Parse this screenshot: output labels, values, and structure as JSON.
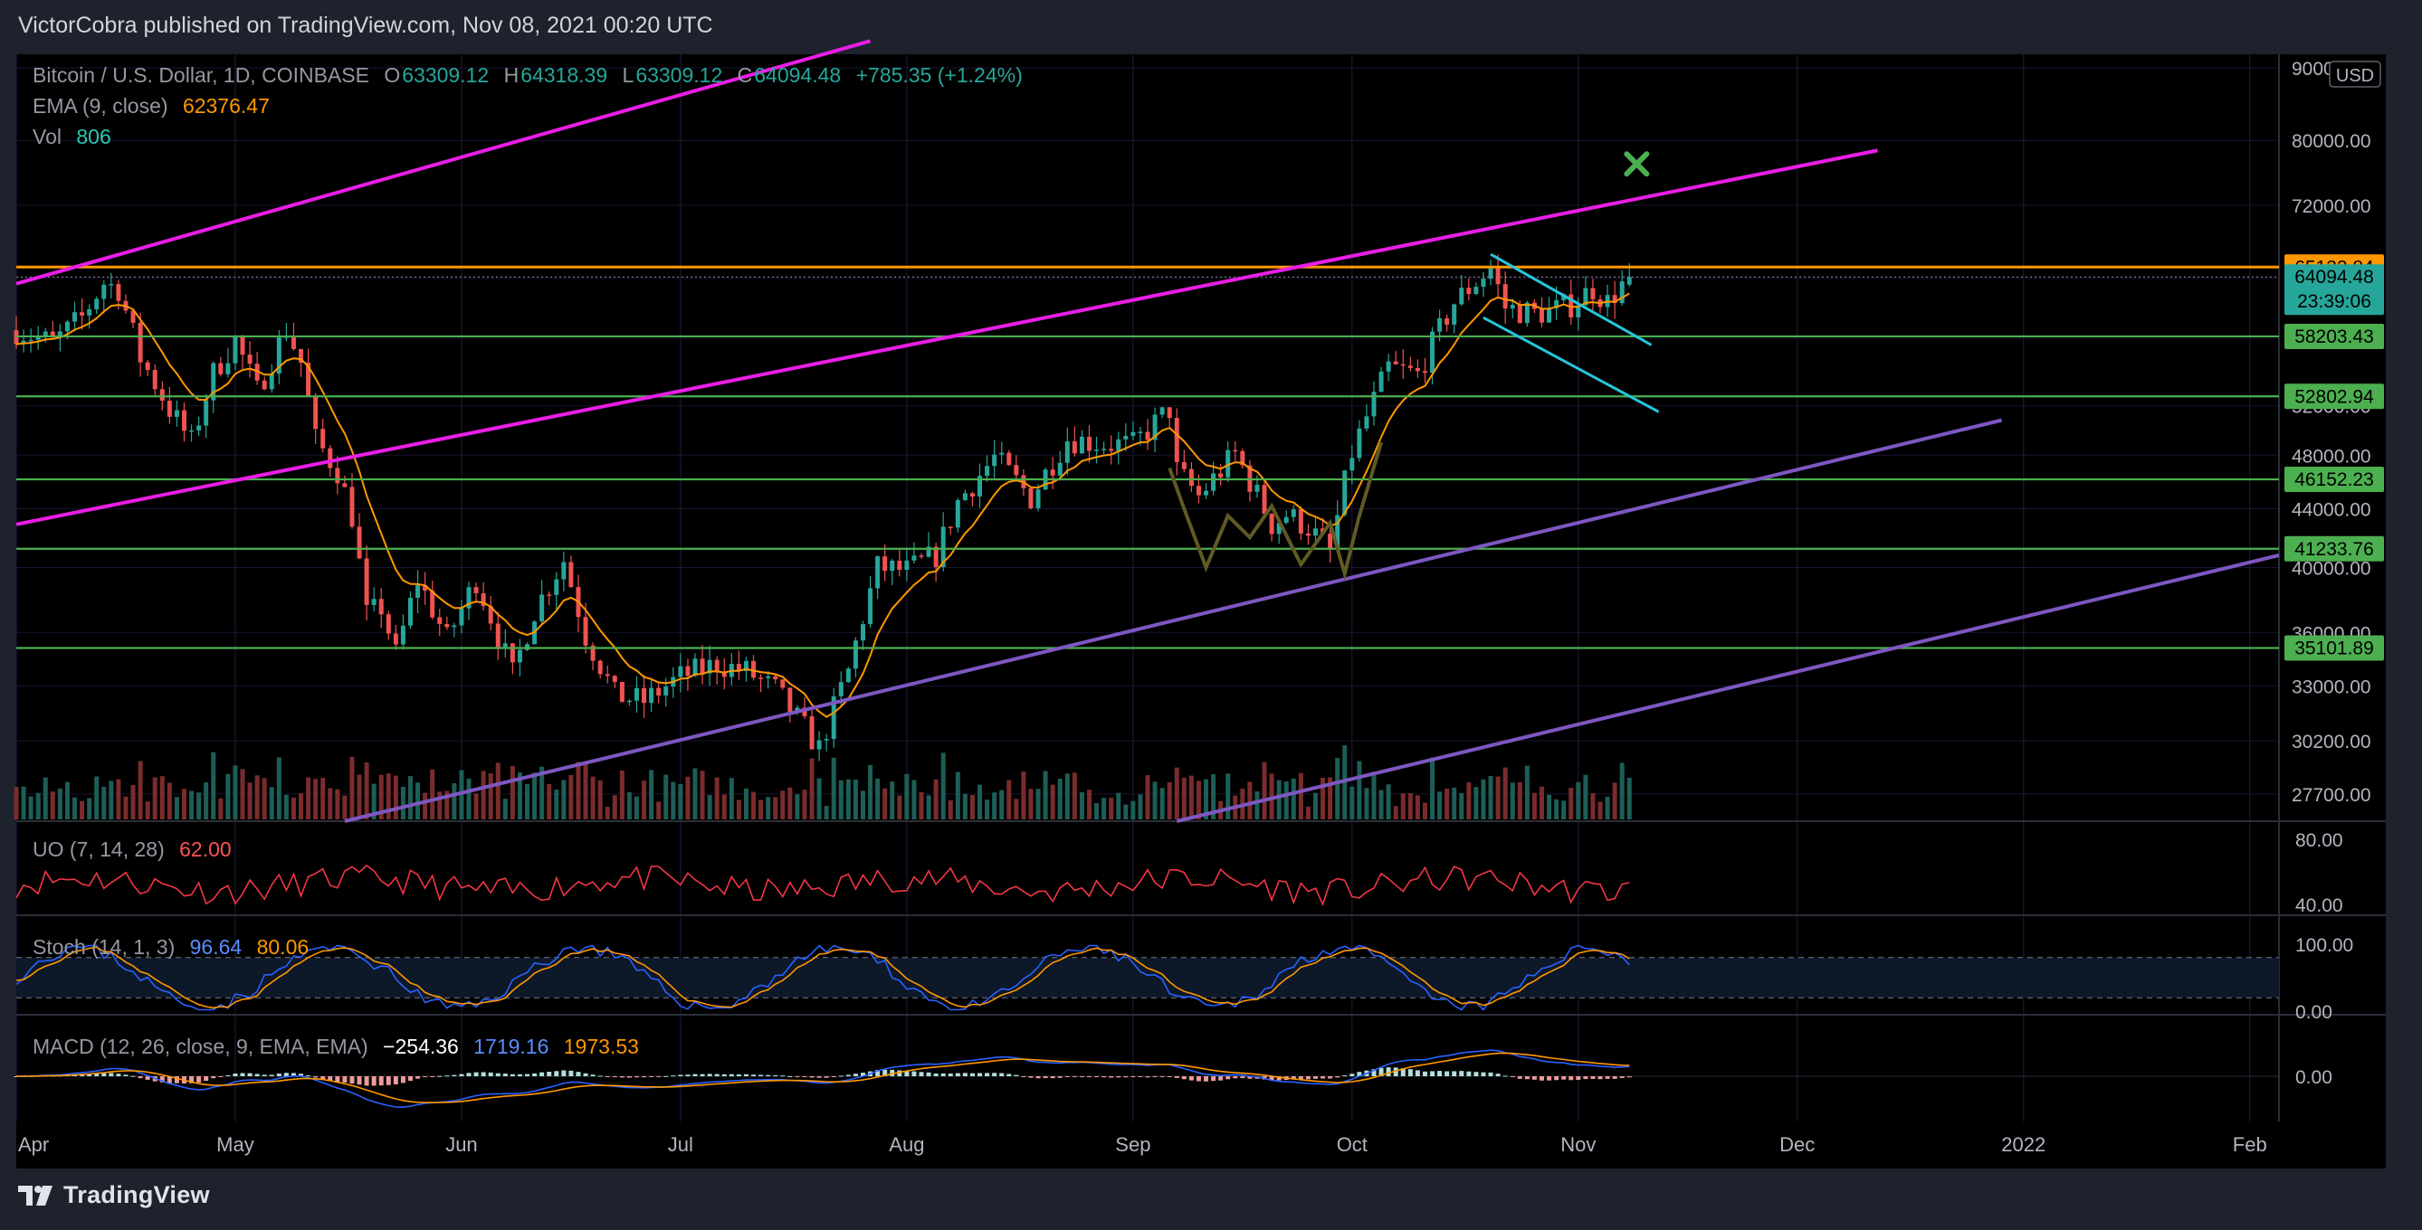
{
  "header": {
    "published_by": "VictorCobra published on TradingView.com, Nov 08, 2021 00:20 UTC"
  },
  "legend": {
    "symbol": "Bitcoin / U.S. Dollar, 1D, COINBASE",
    "open_label": "O",
    "open": "63309.12",
    "high_label": "H",
    "high": "64318.39",
    "low_label": "L",
    "low": "63309.12",
    "close_label": "C",
    "close": "64094.48",
    "change": "+785.35 (+1.24%)",
    "ema_label": "EMA (9, close)",
    "ema_value": "62376.47",
    "vol_label": "Vol",
    "vol_value": "806"
  },
  "indicators": {
    "uo": {
      "label": "UO (7, 14, 28)",
      "value": "62.00"
    },
    "stoch": {
      "label": "Stoch (14, 1, 3)",
      "k": "96.64",
      "d": "80.06"
    },
    "macd": {
      "label": "MACD (12, 26, close, 9, EMA, EMA)",
      "hist": "−254.36",
      "macd": "1719.16",
      "signal": "1973.53"
    }
  },
  "footer": {
    "brand": "TradingView"
  },
  "colors": {
    "background": "#000000",
    "up": "#26a69a",
    "down": "#ef5350",
    "ema": "#ff9800",
    "support": "#4caf50",
    "resistance_orange": "#ff9800",
    "channel_magenta": "#e91ee6",
    "channel_purple": "#7e57c2",
    "wedge_cyan": "#26c6da",
    "target_marker": "#4caf50"
  },
  "chart_data": {
    "type": "candlestick",
    "title": "Bitcoin / U.S. Dollar, 1D, COINBASE",
    "currency": "USD",
    "y_scale": "log",
    "y_ticks": [
      "90000.00",
      "80000.00",
      "72000.00",
      "64000.00",
      "58000.00",
      "52000.00",
      "48000.00",
      "44000.00",
      "40000.00",
      "36000.00",
      "33000.00",
      "30200.00",
      "27700.00"
    ],
    "x_ticks": [
      "Apr",
      "May",
      "Jun",
      "Jul",
      "Aug",
      "Sep",
      "Oct",
      "Nov",
      "Dec",
      "2022",
      "Feb"
    ],
    "x_range": [
      "2021-04-01",
      "2022-02-05"
    ],
    "y_range": [
      26500,
      92000
    ],
    "price_tags": [
      {
        "value": "65133.84",
        "kind": "resistance"
      },
      {
        "value": "64094.48",
        "kind": "last",
        "countdown": "23:39:06"
      },
      {
        "value": "58203.43",
        "kind": "support"
      },
      {
        "value": "52802.94",
        "kind": "support"
      },
      {
        "value": "46152.23",
        "kind": "support"
      },
      {
        "value": "41233.76",
        "kind": "support"
      },
      {
        "value": "35101.89",
        "kind": "support"
      }
    ],
    "close_path": [
      [
        "2021-04-01",
        58800
      ],
      [
        "2021-04-06",
        57600
      ],
      [
        "2021-04-10",
        60000
      ],
      [
        "2021-04-13",
        63500
      ],
      [
        "2021-04-15",
        62900
      ],
      [
        "2021-04-18",
        56200
      ],
      [
        "2021-04-22",
        51700
      ],
      [
        "2021-04-25",
        49000
      ],
      [
        "2021-04-28",
        54800
      ],
      [
        "2021-05-01",
        57800
      ],
      [
        "2021-05-04",
        53200
      ],
      [
        "2021-05-08",
        58900
      ],
      [
        "2021-05-10",
        55800
      ],
      [
        "2021-05-12",
        49200
      ],
      [
        "2021-05-15",
        46800
      ],
      [
        "2021-05-17",
        43500
      ],
      [
        "2021-05-19",
        37000
      ],
      [
        "2021-05-21",
        37500
      ],
      [
        "2021-05-23",
        34700
      ],
      [
        "2021-05-26",
        39200
      ],
      [
        "2021-05-30",
        35600
      ],
      [
        "2021-06-03",
        39200
      ],
      [
        "2021-06-08",
        33600
      ],
      [
        "2021-06-11",
        37300
      ],
      [
        "2021-06-15",
        40500
      ],
      [
        "2021-06-18",
        35800
      ],
      [
        "2021-06-22",
        32500
      ],
      [
        "2021-06-26",
        32200
      ],
      [
        "2021-07-01",
        33500
      ],
      [
        "2021-07-06",
        34200
      ],
      [
        "2021-07-10",
        33800
      ],
      [
        "2021-07-14",
        32800
      ],
      [
        "2021-07-20",
        29800
      ],
      [
        "2021-07-24",
        33800
      ],
      [
        "2021-07-28",
        40000
      ],
      [
        "2021-08-01",
        39800
      ],
      [
        "2021-08-05",
        40800
      ],
      [
        "2021-08-08",
        44500
      ],
      [
        "2021-08-13",
        47800
      ],
      [
        "2021-08-18",
        44800
      ],
      [
        "2021-08-23",
        49300
      ],
      [
        "2021-08-28",
        48900
      ],
      [
        "2021-09-01",
        48800
      ],
      [
        "2021-09-06",
        51700
      ],
      [
        "2021-09-07",
        46800
      ],
      [
        "2021-09-10",
        44900
      ],
      [
        "2021-09-15",
        48100
      ],
      [
        "2021-09-20",
        42900
      ],
      [
        "2021-09-22",
        43600
      ],
      [
        "2021-09-25",
        42700
      ],
      [
        "2021-09-28",
        41000
      ],
      [
        "2021-10-01",
        48200
      ],
      [
        "2021-10-06",
        55300
      ],
      [
        "2021-10-10",
        54700
      ],
      [
        "2021-10-15",
        61500
      ],
      [
        "2021-10-20",
        65000
      ],
      [
        "2021-10-22",
        61000
      ],
      [
        "2021-10-26",
        60400
      ],
      [
        "2021-10-28",
        60600
      ],
      [
        "2021-10-31",
        61300
      ],
      [
        "2021-11-03",
        62900
      ],
      [
        "2021-11-05",
        61500
      ],
      [
        "2021-11-07",
        63300
      ],
      [
        "2021-11-08",
        64094.48
      ]
    ],
    "overlays": {
      "resistance_level": 65133.84,
      "support_levels": [
        58203.43,
        52802.94,
        46152.23,
        41233.76,
        35101.89
      ],
      "magenta_channel": [
        {
          "from": [
            "2021-04-01",
            63400
          ],
          "to": [
            "2021-07-27",
            94000
          ]
        },
        {
          "from": [
            "2021-04-01",
            42900
          ],
          "to": [
            "2021-12-12",
            78700
          ]
        }
      ],
      "purple_channel": [
        {
          "from": [
            "2021-05-16",
            26500
          ],
          "to": [
            "2021-12-29",
            50800
          ]
        },
        {
          "from": [
            "2021-09-07",
            26500
          ],
          "to": [
            "2022-02-05",
            40800
          ]
        }
      ],
      "wedge": [
        {
          "from": [
            "2021-10-20",
            66500
          ],
          "to": [
            "2021-11-11",
            57400
          ]
        },
        {
          "from": [
            "2021-10-19",
            60000
          ],
          "to": [
            "2021-11-12",
            51500
          ]
        }
      ],
      "target_marker": [
        "2021-11-09",
        77000
      ]
    }
  }
}
